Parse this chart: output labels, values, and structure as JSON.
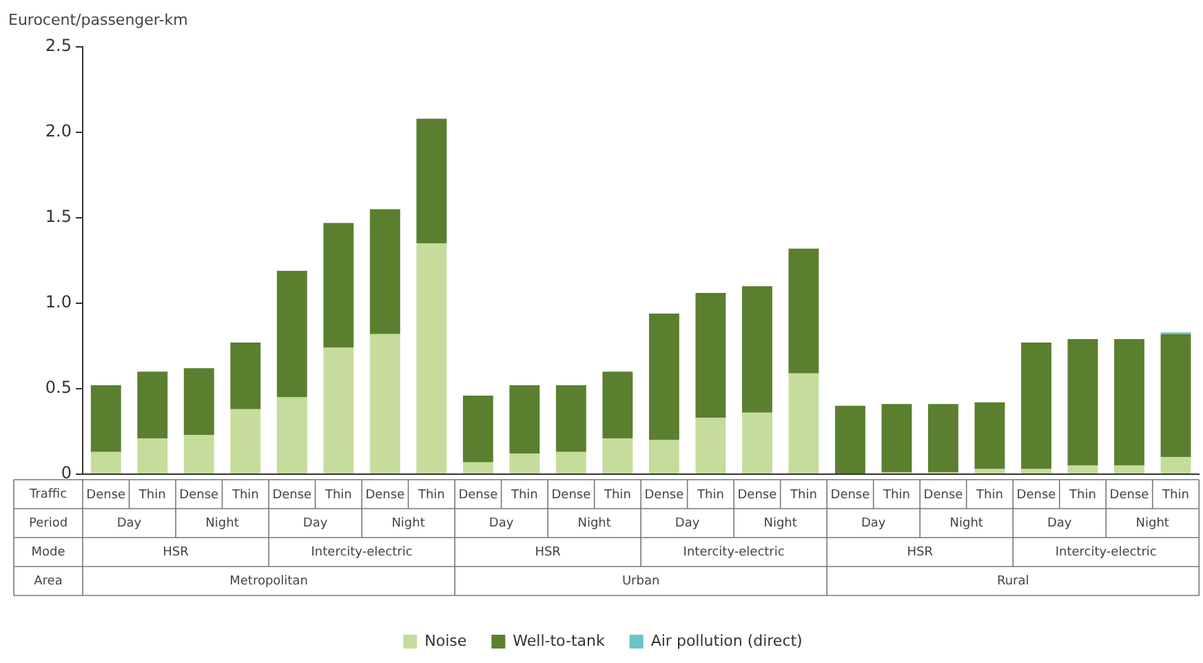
{
  "chart_data": {
    "type": "bar",
    "stacked": true,
    "ylabel": "Eurocent/passenger-km",
    "categories": [
      "Dense",
      "Thin",
      "Dense",
      "Thin",
      "Dense",
      "Thin",
      "Dense",
      "Thin",
      "Dense",
      "Thin",
      "Dense",
      "Thin",
      "Dense",
      "Thin",
      "Dense",
      "Thin",
      "Dense",
      "Thin",
      "Dense",
      "Thin",
      "Dense",
      "Thin",
      "Dense",
      "Thin"
    ],
    "series": [
      {
        "name": "Noise",
        "color": "#c5dc9c",
        "values": [
          0.13,
          0.21,
          0.23,
          0.38,
          0.45,
          0.74,
          0.82,
          1.35,
          0.07,
          0.12,
          0.13,
          0.21,
          0.2,
          0.33,
          0.36,
          0.59,
          0,
          0.01,
          0.01,
          0.03,
          0.03,
          0.05,
          0.05,
          0.1
        ]
      },
      {
        "name": "Well-to-tank",
        "color": "#5a7f2f",
        "values": [
          0.39,
          0.39,
          0.39,
          0.39,
          0.74,
          0.73,
          0.73,
          0.73,
          0.39,
          0.4,
          0.39,
          0.39,
          0.74,
          0.73,
          0.74,
          0.73,
          0.4,
          0.4,
          0.4,
          0.39,
          0.74,
          0.74,
          0.74,
          0.72
        ]
      },
      {
        "name": "Air pollution (direct)",
        "color": "#6cc3c8",
        "values": [
          0,
          0,
          0,
          0,
          0,
          0,
          0,
          0,
          0,
          0,
          0,
          0,
          0,
          0,
          0,
          0,
          0,
          0,
          0,
          0,
          0,
          0,
          0,
          0.01
        ]
      }
    ],
    "ylim": [
      0,
      2.5
    ],
    "yticks": [
      0,
      {
        "value": 0.5,
        "label": "0.5"
      },
      {
        "value": 1,
        "label": "1.0"
      },
      {
        "value": 1.5,
        "label": "1.5"
      },
      {
        "value": 2,
        "label": "2.0"
      },
      2.5
    ],
    "grid": false,
    "legend": "bottom",
    "annotations": [
      "Traffic",
      "Period",
      "Mode",
      "Area",
      "Day",
      "Night",
      "Day",
      "Night",
      "Day",
      "Night",
      "Day",
      "Night",
      "Day",
      "Night",
      "Day",
      "Night",
      "HSR",
      "Intercity-electric",
      "HSR",
      "Intercity-electric",
      "HSR",
      "Intercity-electric",
      "Metropolitan",
      "Urban",
      "Rural"
    ]
  }
}
